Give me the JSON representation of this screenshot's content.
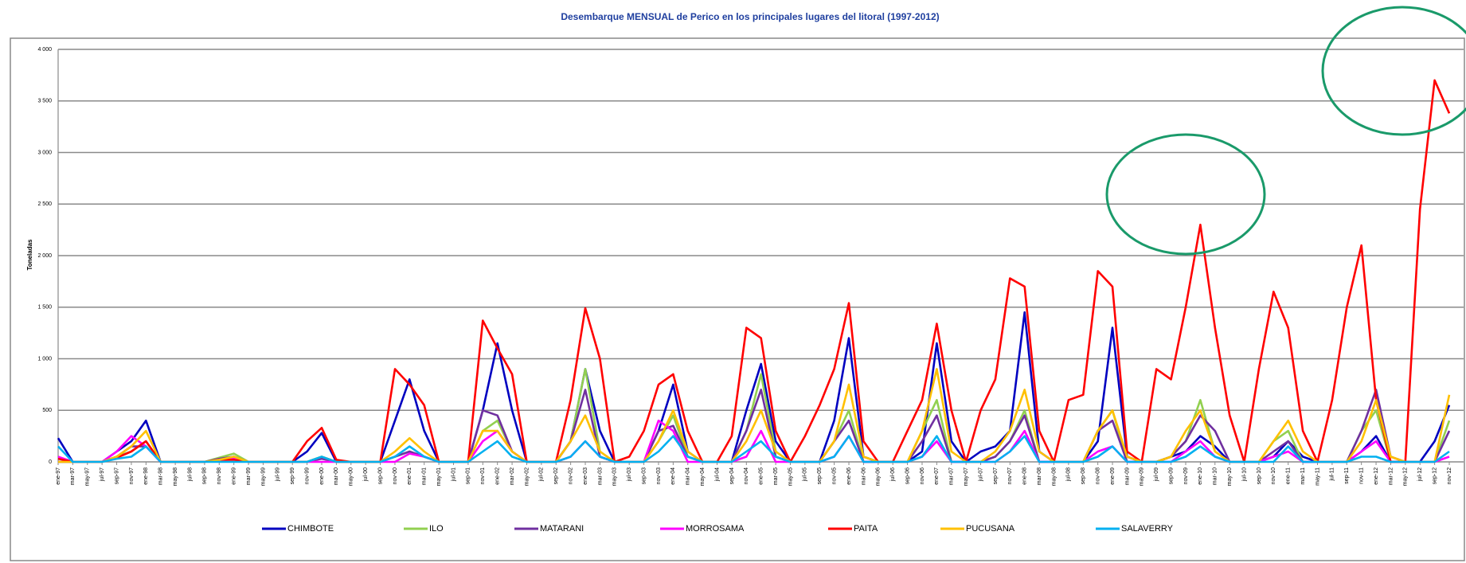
{
  "chart_data": {
    "type": "line",
    "title": "Desembarque MENSUAL de Perico en los principales lugares del litoral (1997-2012)",
    "y_label": "Toneladas",
    "categories": [
      "ene-97",
      "mar-97",
      "may-97",
      "jul-97",
      "sep-97",
      "nov-97",
      "ene-98",
      "mar-98",
      "may-98",
      "jul-98",
      "sep-98",
      "nov-98",
      "ene-99",
      "mar-99",
      "may-99",
      "jul-99",
      "sep-99",
      "nov-99",
      "ene-00",
      "mar-00",
      "may-00",
      "jul-00",
      "sep-00",
      "nov-00",
      "ene-01",
      "mar-01",
      "may-01",
      "jul-01",
      "sep-01",
      "nov-01",
      "ene-02",
      "mar-02",
      "may-02",
      "jul-02",
      "sep-02",
      "nov-02",
      "ene-03",
      "mar-03",
      "may-03",
      "jul-03",
      "sep-03",
      "nov-03",
      "ene-04",
      "mar-04",
      "may-04",
      "jul-04",
      "sep-04",
      "nov-04",
      "ene-05",
      "mar-05",
      "may-05",
      "jul-05",
      "sep-05",
      "nov-05",
      "ene-06",
      "mar-06",
      "may-06",
      "jul-06",
      "sep-06",
      "nov-06",
      "ene-07",
      "mar-07",
      "may-07",
      "jul-07",
      "sep-07",
      "nov-07",
      "ene-08",
      "mar-08",
      "may-08",
      "jul-08",
      "sep-08",
      "nov-08",
      "ene-09",
      "mar-09",
      "may-09",
      "jul-09",
      "sep-09",
      "nov-09",
      "ene-10",
      "mar-10",
      "may-10",
      "jul-10",
      "sep-10",
      "nov-10",
      "ene-11",
      "mar-11",
      "may-11",
      "jul-11",
      "sep-11",
      "nov-11",
      "ene-12",
      "mar-12",
      "may-12",
      "jul-12",
      "sep-12",
      "nov-12"
    ],
    "series": [
      {
        "name": "CHIMBOTE",
        "color": "#0000c0",
        "values": [
          230,
          0,
          0,
          0,
          100,
          200,
          400,
          0,
          0,
          0,
          0,
          30,
          30,
          0,
          0,
          0,
          0,
          100,
          280,
          0,
          0,
          0,
          0,
          400,
          800,
          300,
          0,
          0,
          0,
          500,
          1150,
          500,
          0,
          0,
          0,
          200,
          900,
          300,
          0,
          0,
          0,
          300,
          750,
          100,
          0,
          0,
          0,
          500,
          950,
          200,
          0,
          0,
          0,
          400,
          1200,
          50,
          0,
          0,
          0,
          100,
          1150,
          200,
          0,
          100,
          150,
          300,
          1450,
          100,
          0,
          0,
          0,
          200,
          1300,
          50,
          0,
          0,
          50,
          100,
          250,
          150,
          0,
          0,
          0,
          50,
          200,
          50,
          0,
          0,
          0,
          100,
          250,
          0,
          0,
          0,
          200,
          550
        ]
      },
      {
        "name": "ILO",
        "color": "#92d050",
        "values": [
          0,
          0,
          0,
          0,
          50,
          100,
          200,
          0,
          0,
          0,
          0,
          40,
          80,
          0,
          0,
          0,
          0,
          0,
          50,
          0,
          0,
          0,
          0,
          50,
          100,
          50,
          0,
          0,
          0,
          300,
          400,
          100,
          0,
          0,
          0,
          200,
          900,
          100,
          0,
          0,
          0,
          200,
          450,
          50,
          0,
          0,
          0,
          300,
          850,
          100,
          0,
          0,
          0,
          200,
          500,
          0,
          0,
          0,
          0,
          300,
          600,
          0,
          0,
          0,
          50,
          200,
          500,
          0,
          0,
          0,
          0,
          300,
          500,
          0,
          0,
          0,
          50,
          200,
          600,
          100,
          0,
          0,
          0,
          200,
          300,
          0,
          0,
          0,
          0,
          300,
          500,
          0,
          0,
          0,
          0,
          400
        ]
      },
      {
        "name": "MATARANI",
        "color": "#7030a0",
        "values": [
          0,
          0,
          0,
          0,
          50,
          150,
          150,
          0,
          0,
          0,
          0,
          30,
          50,
          0,
          0,
          0,
          0,
          0,
          30,
          0,
          0,
          0,
          0,
          50,
          100,
          50,
          0,
          0,
          0,
          500,
          450,
          100,
          0,
          0,
          0,
          200,
          700,
          50,
          0,
          0,
          0,
          300,
          350,
          50,
          0,
          0,
          0,
          300,
          700,
          50,
          0,
          0,
          0,
          200,
          400,
          0,
          0,
          0,
          0,
          200,
          450,
          0,
          0,
          0,
          50,
          200,
          450,
          0,
          0,
          0,
          0,
          300,
          400,
          0,
          0,
          0,
          50,
          200,
          450,
          300,
          0,
          0,
          0,
          100,
          200,
          0,
          0,
          0,
          0,
          300,
          700,
          50,
          0,
          0,
          0,
          300
        ]
      },
      {
        "name": "MORROSAMA",
        "color": "#ff00ff",
        "values": [
          50,
          0,
          0,
          0,
          100,
          250,
          150,
          0,
          0,
          0,
          0,
          20,
          40,
          0,
          0,
          0,
          0,
          0,
          0,
          0,
          0,
          0,
          0,
          0,
          80,
          50,
          0,
          0,
          0,
          200,
          300,
          100,
          0,
          0,
          0,
          50,
          200,
          50,
          0,
          0,
          0,
          400,
          300,
          0,
          0,
          0,
          0,
          50,
          300,
          0,
          0,
          0,
          0,
          50,
          250,
          0,
          0,
          0,
          0,
          50,
          200,
          0,
          0,
          0,
          0,
          100,
          300,
          0,
          0,
          0,
          0,
          100,
          150,
          0,
          0,
          0,
          0,
          100,
          200,
          50,
          0,
          0,
          0,
          50,
          100,
          0,
          0,
          0,
          0,
          100,
          200,
          0,
          0,
          0,
          0,
          50
        ]
      },
      {
        "name": "PAITA",
        "color": "#ff0000",
        "values": [
          30,
          0,
          0,
          0,
          40,
          100,
          200,
          0,
          0,
          0,
          0,
          20,
          20,
          0,
          0,
          0,
          0,
          200,
          330,
          20,
          0,
          0,
          0,
          900,
          750,
          550,
          0,
          0,
          0,
          1370,
          1100,
          850,
          0,
          0,
          0,
          600,
          1490,
          1000,
          0,
          50,
          300,
          750,
          850,
          300,
          0,
          0,
          250,
          1300,
          1200,
          300,
          0,
          250,
          550,
          900,
          1540,
          200,
          0,
          0,
          300,
          600,
          1340,
          500,
          0,
          500,
          800,
          1780,
          1700,
          300,
          0,
          600,
          650,
          1850,
          1700,
          100,
          0,
          900,
          800,
          1500,
          2300,
          1300,
          450,
          0,
          900,
          1650,
          1300,
          300,
          0,
          600,
          1500,
          2100,
          600,
          0,
          0,
          2450,
          3700,
          3380
        ]
      },
      {
        "name": "PUCUSANA",
        "color": "#ffc000",
        "values": [
          0,
          0,
          0,
          0,
          50,
          150,
          300,
          0,
          0,
          0,
          0,
          20,
          50,
          0,
          0,
          0,
          0,
          0,
          50,
          0,
          0,
          0,
          0,
          100,
          230,
          100,
          0,
          0,
          0,
          300,
          300,
          100,
          0,
          0,
          0,
          200,
          450,
          100,
          0,
          0,
          0,
          200,
          500,
          100,
          0,
          0,
          0,
          200,
          500,
          100,
          0,
          0,
          0,
          200,
          750,
          50,
          0,
          0,
          0,
          300,
          900,
          100,
          0,
          0,
          100,
          300,
          700,
          100,
          0,
          0,
          0,
          300,
          500,
          50,
          0,
          0,
          50,
          300,
          500,
          100,
          0,
          0,
          0,
          200,
          400,
          100,
          0,
          0,
          0,
          200,
          600,
          50,
          0,
          0,
          0,
          650
        ]
      },
      {
        "name": "SALAVERRY",
        "color": "#00b0f0",
        "values": [
          150,
          0,
          0,
          0,
          30,
          50,
          150,
          0,
          0,
          0,
          0,
          0,
          0,
          0,
          0,
          0,
          0,
          0,
          50,
          0,
          0,
          0,
          0,
          50,
          150,
          50,
          0,
          0,
          0,
          100,
          200,
          50,
          0,
          0,
          0,
          50,
          200,
          50,
          0,
          0,
          0,
          100,
          250,
          50,
          0,
          0,
          0,
          100,
          200,
          50,
          0,
          0,
          0,
          50,
          250,
          0,
          0,
          0,
          0,
          50,
          250,
          0,
          0,
          0,
          0,
          100,
          250,
          0,
          0,
          0,
          0,
          50,
          150,
          0,
          0,
          0,
          0,
          50,
          150,
          50,
          0,
          0,
          0,
          0,
          150,
          0,
          0,
          0,
          0,
          50,
          50,
          0,
          0,
          0,
          0,
          100
        ]
      }
    ],
    "ylim": [
      0,
      4000
    ],
    "yticks": [
      0,
      {
        "value": 500,
        "label": "500"
      },
      {
        "value": 1000,
        "label": "1 000"
      },
      {
        "value": 1500,
        "label": "1 500"
      },
      {
        "value": 2000,
        "label": "2 000"
      },
      {
        "value": 2500,
        "label": "2 500"
      },
      {
        "value": 3000,
        "label": "3 000"
      },
      {
        "value": 3500,
        "label": "3 500"
      },
      {
        "value": 4000,
        "label": "4 000"
      }
    ],
    "grid": true,
    "legend": "bottom"
  }
}
